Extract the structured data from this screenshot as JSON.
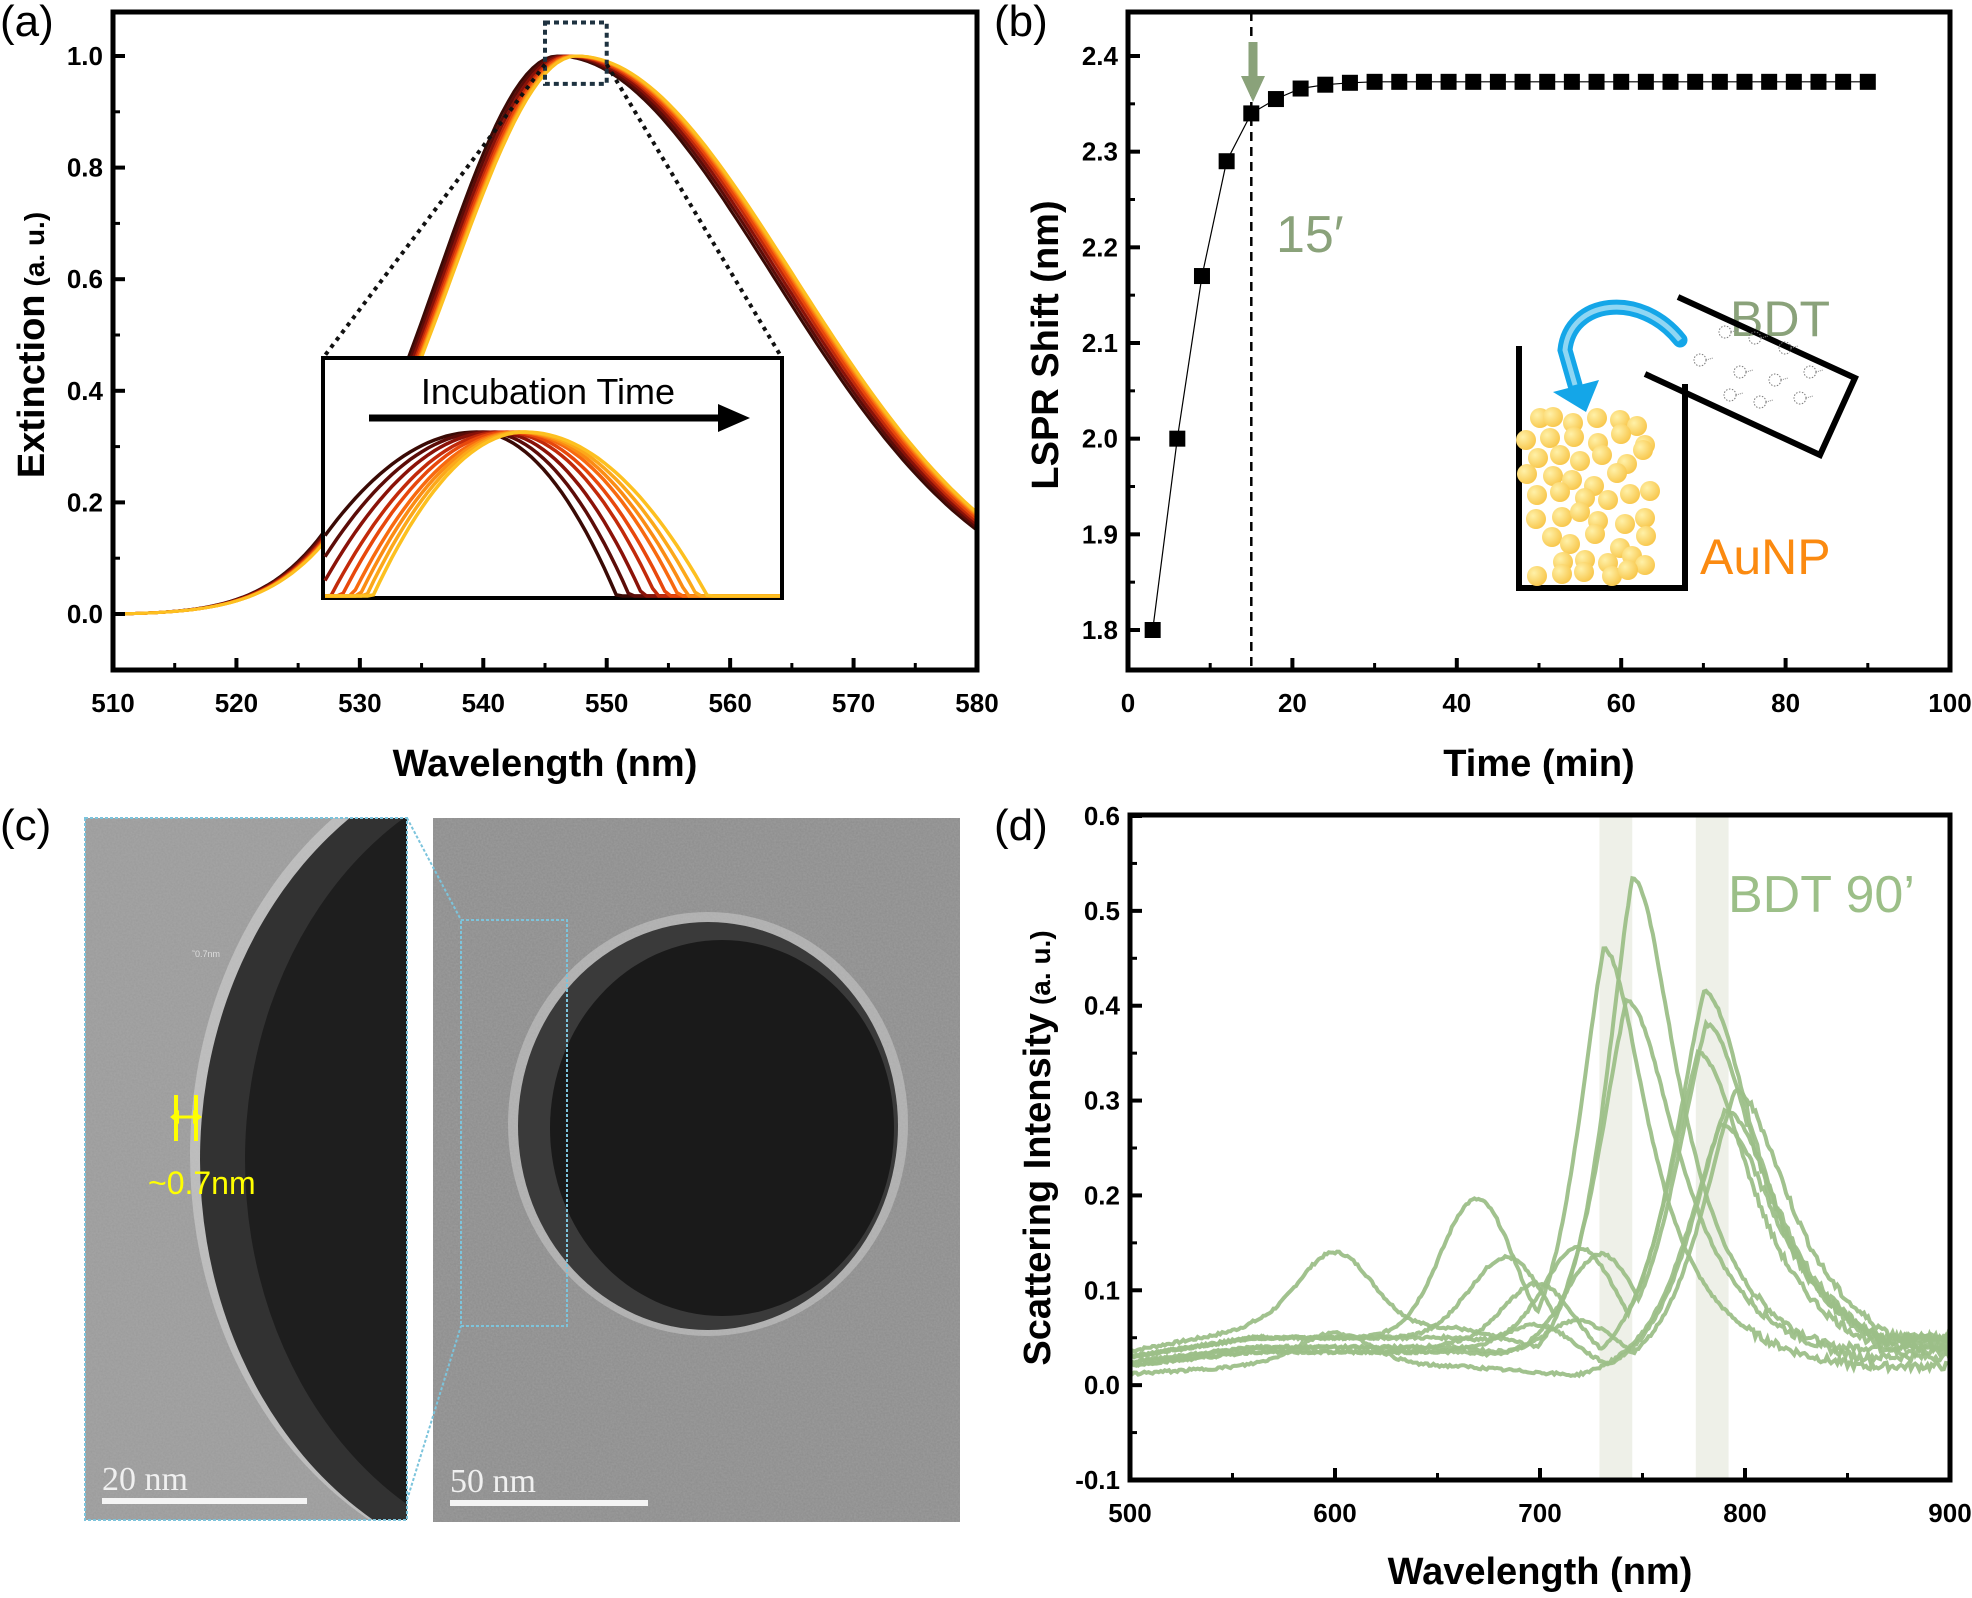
{
  "figure": {
    "panels": [
      {
        "id": "a",
        "label": "(a)"
      },
      {
        "id": "b",
        "label": "(b)"
      },
      {
        "id": "c",
        "label": "(c)"
      },
      {
        "id": "d",
        "label": "(d)"
      }
    ]
  },
  "chart_data": [
    {
      "panel": "a",
      "type": "line",
      "title": "",
      "xlabel": "Wavelength (nm)",
      "ylabel": "Extinction",
      "ylabel_unit": "(a. u.)",
      "xlim": [
        510,
        580
      ],
      "ylim": [
        -0.1,
        1.13
      ],
      "xticks": [
        510,
        520,
        530,
        540,
        550,
        560,
        570,
        580
      ],
      "yticks": [
        0.0,
        0.2,
        0.4,
        0.6,
        0.8,
        1.0
      ],
      "ytick_labels": [
        "0.0",
        "0.2",
        "0.4",
        "0.6",
        "0.8",
        "1.0"
      ],
      "grid": false,
      "series_description": "Normalized extinction spectra recorded over incubation time; colors go from dark brown (early) to yellow (late); peak near 547 nm",
      "series": [
        {
          "name": "t1",
          "color": "#3a0a05",
          "peak_nm": 546.0,
          "end_value": 0.15
        },
        {
          "name": "t2",
          "color": "#5c0c08",
          "peak_nm": 546.3,
          "end_value": 0.155
        },
        {
          "name": "t3",
          "color": "#8a1208",
          "peak_nm": 546.6,
          "end_value": 0.16
        },
        {
          "name": "t4",
          "color": "#c22a0a",
          "peak_nm": 546.9,
          "end_value": 0.165
        },
        {
          "name": "t5",
          "color": "#e8480c",
          "peak_nm": 547.1,
          "end_value": 0.17
        },
        {
          "name": "t6",
          "color": "#f86a10",
          "peak_nm": 547.3,
          "end_value": 0.175
        },
        {
          "name": "t7",
          "color": "#fb8c14",
          "peak_nm": 547.4,
          "end_value": 0.178
        },
        {
          "name": "t8",
          "color": "#fca81a",
          "peak_nm": 547.5,
          "end_value": 0.18
        },
        {
          "name": "t9",
          "color": "#fdc020",
          "peak_nm": 547.6,
          "end_value": 0.182
        }
      ],
      "zoom_box": {
        "x_range": [
          545,
          550
        ],
        "y_range": [
          0.95,
          1.06
        ]
      },
      "inset": {
        "annotation": "Incubation Time",
        "arrow_direction": "right"
      }
    },
    {
      "panel": "b",
      "type": "scatter",
      "title": "",
      "xlabel": "Time (min)",
      "ylabel": "LSPR Shift (nm)",
      "xlim": [
        0,
        100
      ],
      "ylim": [
        1.75,
        2.45
      ],
      "xticks": [
        0,
        20,
        40,
        60,
        80,
        100
      ],
      "yticks": [
        1.8,
        1.9,
        2.0,
        2.1,
        2.2,
        2.3,
        2.4
      ],
      "ytick_labels": [
        "1.8",
        "1.9",
        "2.0",
        "2.1",
        "2.2",
        "2.3",
        "2.4"
      ],
      "grid": false,
      "marker": "square",
      "connected": true,
      "x": [
        3,
        6,
        9,
        12,
        15,
        18,
        21,
        24,
        27,
        30,
        33,
        36,
        39,
        42,
        45,
        48,
        51,
        54,
        57,
        60,
        63,
        66,
        69,
        72,
        75,
        78,
        81,
        84,
        87,
        90
      ],
      "values": [
        1.8,
        2.0,
        2.17,
        2.29,
        2.34,
        2.355,
        2.366,
        2.37,
        2.372,
        2.373,
        2.373,
        2.373,
        2.373,
        2.373,
        2.373,
        2.373,
        2.373,
        2.373,
        2.373,
        2.373,
        2.373,
        2.373,
        2.373,
        2.373,
        2.373,
        2.373,
        2.373,
        2.373,
        2.373,
        2.373
      ],
      "vline": {
        "x": 15,
        "style": "dashed"
      },
      "annotations": [
        {
          "text": "15′",
          "color": "#8aa27a"
        },
        {
          "text": "BDT",
          "color": "#8aa27a"
        },
        {
          "text": "AuNP",
          "color": "#fb8a10"
        }
      ],
      "arrow_color": "#8aa27a",
      "schematic": "beaker with gold nanoparticles receiving BDT from tilted vial (blue curved arrow)"
    },
    {
      "panel": "d",
      "type": "line",
      "title": "",
      "xlabel": "Wavelength (nm)",
      "ylabel": "Scattering Intensity",
      "ylabel_unit": "(a. u.)",
      "xlim": [
        500,
        900
      ],
      "ylim": [
        -0.1,
        0.6
      ],
      "xticks": [
        500,
        600,
        700,
        800,
        900
      ],
      "yticks": [
        -0.1,
        0.0,
        0.1,
        0.2,
        0.3,
        0.4,
        0.5,
        0.6
      ],
      "ytick_labels": [
        "-0.1",
        "0.0",
        "0.1",
        "0.2",
        "0.3",
        "0.4",
        "0.5",
        "0.6"
      ],
      "grid": false,
      "series_color": "#9cbf88",
      "annotation": {
        "text": "BDT 90’",
        "color": "#9cbf88"
      },
      "shaded_bands": [
        {
          "x_range": [
            729,
            745
          ],
          "color": "#eef0e8"
        },
        {
          "x_range": [
            776,
            792
          ],
          "color": "#eef0e8"
        }
      ],
      "series": [
        {
          "name": "s1",
          "peak_nm": 745,
          "peak_value": 0.535,
          "width": 28,
          "base": 0.06,
          "shoulder_nm": 600,
          "shoulder": 0.08,
          "tail": 0.04
        },
        {
          "name": "s2",
          "peak_nm": 731,
          "peak_value": 0.46,
          "width": 27,
          "base": 0.05,
          "shoulder_nm": 670,
          "shoulder": 0.15,
          "tail": 0.02
        },
        {
          "name": "s3",
          "peak_nm": 742,
          "peak_value": 0.405,
          "width": 32,
          "base": 0.05,
          "shoulder_nm": 685,
          "shoulder": 0.095,
          "tail": 0.03
        },
        {
          "name": "s4",
          "peak_nm": 780,
          "peak_value": 0.415,
          "width": 32,
          "base": 0.05,
          "shoulder_nm": 720,
          "shoulder": 0.12,
          "tail": 0.05
        },
        {
          "name": "s5",
          "peak_nm": 781,
          "peak_value": 0.38,
          "width": 33,
          "base": 0.04,
          "shoulder_nm": 730,
          "shoulder": 0.12,
          "tail": 0.045
        },
        {
          "name": "s6",
          "peak_nm": 777,
          "peak_value": 0.35,
          "width": 33,
          "base": 0.04,
          "shoulder_nm": 700,
          "shoulder": 0.08,
          "tail": 0.035
        },
        {
          "name": "s7",
          "peak_nm": 795,
          "peak_value": 0.31,
          "width": 35,
          "base": 0.035,
          "shoulder_nm": 720,
          "shoulder": 0.05,
          "tail": 0.05
        },
        {
          "name": "s8",
          "peak_nm": 790,
          "peak_value": 0.29,
          "width": 35,
          "base": 0.035,
          "shoulder_nm": 700,
          "shoulder": 0.04,
          "tail": 0.05
        },
        {
          "name": "s9",
          "peak_nm": 788,
          "peak_value": 0.275,
          "width": 36,
          "base": 0.02,
          "shoulder_nm": 600,
          "shoulder": 0.035,
          "tail": 0.04
        }
      ]
    }
  ],
  "panel_c": {
    "type": "TEM micrographs",
    "left_image": {
      "scale_bar": "20 nm",
      "measurement_label": "~0.7nm",
      "small_label": "˜0.7nm",
      "measurement_color": "#ffff00"
    },
    "right_image": {
      "scale_bar": "50 nm"
    },
    "zoom_box_color": "#7cc4dc"
  }
}
